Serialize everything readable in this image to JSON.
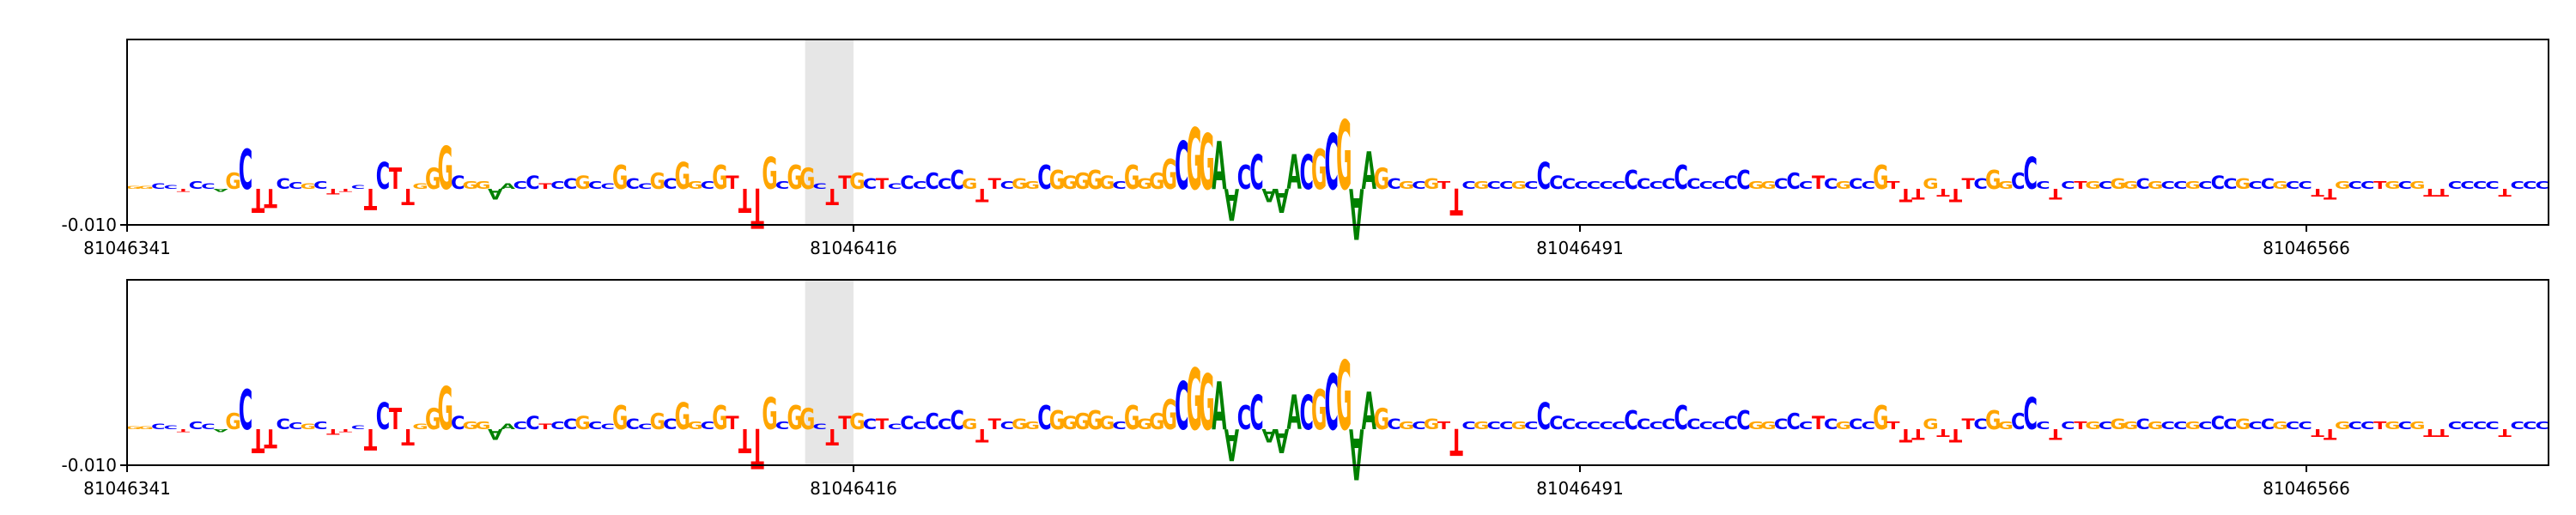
{
  "colors": {
    "A": "#008000",
    "C": "#0000ff",
    "G": "#ffa500",
    "T": "#ff0000",
    "highlight": "#e6e6e6",
    "frame": "#000000"
  },
  "chart_data": [
    {
      "type": "sequence-logo",
      "xlim": [
        81046341,
        81046591
      ],
      "ylim_bottom": -0.01,
      "ytick_labels": [
        "-0.010"
      ],
      "xtick_labels": [
        "81046341",
        "81046416",
        "81046491",
        "81046566"
      ],
      "xticks": [
        81046341,
        81046416,
        81046491,
        81046566
      ],
      "highlight_range": [
        81046411,
        81046416
      ],
      "sequence": "GGCCTCCAGCTTCCGCTTCTCTTGGGCGGAACCTCCGCCGCCGCGGCGTTTGCGGCTTGCTCCCCCCGTTCGGCGGGGGCGGGGCGGAACCAAACGCGAAGCGCGTTCGCCGCCCCCCCCCCCCCCCCCCGGCCCTCGCCGTTTGTTTCGGCCCTCTGCGGCGCCGCCCGCCGCCTTGCCTGCGTTCCCCTCCC",
      "heights": [
        0.1,
        0.1,
        0.2,
        0.15,
        0.1,
        0.3,
        0.2,
        0.1,
        0.6,
        1.5,
        0.9,
        0.7,
        0.4,
        0.25,
        0.2,
        0.3,
        0.2,
        0.1,
        0.15,
        0.8,
        1.0,
        0.8,
        0.6,
        0.2,
        0.8,
        1.6,
        0.5,
        0.3,
        0.3,
        0.4,
        0.2,
        0.3,
        0.5,
        0.2,
        0.3,
        0.4,
        0.5,
        0.3,
        0.2,
        0.9,
        0.4,
        0.2,
        0.6,
        0.4,
        1.0,
        0.3,
        0.3,
        0.9,
        0.5,
        0.9,
        1.5,
        1.2,
        0.3,
        0.9,
        0.8,
        0.2,
        0.6,
        0.5,
        0.6,
        0.4,
        0.4,
        0.2,
        0.5,
        0.3,
        0.6,
        0.4,
        0.7,
        0.4,
        0.5,
        0.4,
        0.3,
        0.4,
        0.3,
        0.9,
        0.7,
        0.5,
        0.6,
        0.7,
        0.5,
        0.3,
        0.9,
        0.4,
        0.6,
        1.1,
        1.8,
        2.3,
        2.1,
        1.8,
        1.2,
        0.9,
        1.3,
        0.5,
        0.9,
        1.3,
        1.3,
        1.5,
        2.1,
        2.6,
        1.9,
        1.4,
        0.8,
        0.4,
        0.3,
        0.3,
        0.4,
        0.3,
        1.0,
        0.3,
        0.3,
        0.3,
        0.3,
        0.3,
        0.3,
        1.0,
        0.5,
        0.4,
        0.3,
        0.3,
        0.3,
        0.3,
        0.7,
        0.4,
        0.3,
        0.4,
        0.9,
        0.4,
        0.3,
        0.3,
        0.5,
        0.7,
        0.3,
        0.3,
        0.4,
        0.6,
        0.3,
        0.5,
        0.4,
        0.3,
        0.4,
        0.3,
        0.9,
        0.3,
        0.5,
        0.4,
        0.4,
        0.3,
        0.5,
        0.4,
        0.4,
        0.7,
        0.3,
        0.6,
        1.2,
        0.3,
        0.4,
        0.3,
        0.3,
        0.3,
        0.3,
        0.4,
        0.3,
        0.4,
        0.3,
        0.3,
        0.3,
        0.3,
        0.3,
        0.5,
        0.4,
        0.4,
        0.3,
        0.4,
        0.3,
        0.3,
        0.3,
        0.3,
        0.4,
        0.3,
        0.3,
        0.3,
        0.3,
        0.3,
        0.3,
        0.3,
        0.3,
        0.3,
        0.3,
        0.3,
        0.3,
        0.3,
        0.3,
        0.3,
        0.3,
        0.3,
        0.3,
        0.3
      ]
    },
    {
      "type": "sequence-logo",
      "xlim": [
        81046341,
        81046591
      ],
      "ylim_bottom": -0.01,
      "ytick_labels": [
        "-0.010"
      ],
      "xtick_labels": [
        "81046341",
        "81046416",
        "81046491",
        "81046566"
      ],
      "xticks": [
        81046341,
        81046416,
        81046491,
        81046566
      ],
      "highlight_range": [
        81046411,
        81046416
      ],
      "sequence": "GGCCTCCAGCTTCCGCTTCTCTTGGGCGGAACCTCCGCCGCCGCGGCGTTTGCGGCTTGCTCCCCCCGTTCGGCGGGGGCGGGGCGGAACCAAACGCGAAGCGCGTTCGCCGCCCCCCCCCCCCCCCCCCGGCCCTCGCCGTTTGTTTCGGCCCTCTGCGGCGCCGCCCGCCGCCTTGCCTGCGTTCCCCTCCC",
      "heights": [
        0.1,
        0.1,
        0.2,
        0.15,
        0.1,
        0.3,
        0.2,
        0.1,
        0.6,
        1.5,
        0.9,
        0.7,
        0.4,
        0.25,
        0.2,
        0.3,
        0.2,
        0.1,
        0.15,
        0.8,
        1.0,
        0.8,
        0.6,
        0.2,
        0.8,
        1.6,
        0.5,
        0.3,
        0.3,
        0.4,
        0.2,
        0.3,
        0.5,
        0.2,
        0.3,
        0.4,
        0.5,
        0.3,
        0.2,
        0.9,
        0.4,
        0.2,
        0.6,
        0.4,
        1.0,
        0.3,
        0.3,
        0.9,
        0.5,
        0.9,
        1.5,
        1.2,
        0.3,
        0.9,
        0.8,
        0.2,
        0.6,
        0.5,
        0.6,
        0.4,
        0.4,
        0.2,
        0.5,
        0.3,
        0.6,
        0.4,
        0.7,
        0.4,
        0.5,
        0.4,
        0.3,
        0.4,
        0.3,
        0.9,
        0.7,
        0.5,
        0.6,
        0.7,
        0.5,
        0.3,
        0.9,
        0.4,
        0.6,
        1.1,
        1.8,
        2.3,
        2.1,
        1.8,
        1.2,
        0.9,
        1.3,
        0.5,
        0.9,
        1.3,
        1.3,
        1.5,
        2.1,
        2.6,
        1.9,
        1.4,
        0.8,
        0.4,
        0.3,
        0.3,
        0.4,
        0.3,
        1.0,
        0.3,
        0.3,
        0.3,
        0.3,
        0.3,
        0.3,
        1.0,
        0.5,
        0.4,
        0.3,
        0.3,
        0.3,
        0.3,
        0.7,
        0.4,
        0.3,
        0.4,
        0.9,
        0.4,
        0.3,
        0.3,
        0.5,
        0.7,
        0.3,
        0.3,
        0.4,
        0.6,
        0.3,
        0.5,
        0.4,
        0.3,
        0.4,
        0.3,
        0.9,
        0.3,
        0.5,
        0.4,
        0.4,
        0.3,
        0.5,
        0.4,
        0.4,
        0.7,
        0.3,
        0.6,
        1.2,
        0.3,
        0.4,
        0.3,
        0.3,
        0.3,
        0.3,
        0.4,
        0.3,
        0.4,
        0.3,
        0.3,
        0.3,
        0.3,
        0.3,
        0.5,
        0.4,
        0.4,
        0.3,
        0.4,
        0.3,
        0.3,
        0.3,
        0.3,
        0.4,
        0.3,
        0.3,
        0.3,
        0.3,
        0.3,
        0.3,
        0.3,
        0.3,
        0.3,
        0.3,
        0.3,
        0.3,
        0.3,
        0.3,
        0.3,
        0.3,
        0.3,
        0.3,
        0.3
      ]
    }
  ]
}
